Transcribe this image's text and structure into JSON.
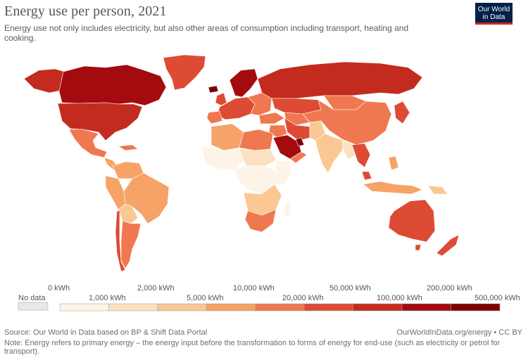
{
  "header": {
    "title": "Energy use per person, 2021",
    "subtitle": "Energy use not only includes electricity, but also other areas of consumption including transport, heating and cooking.",
    "logo_line1": "Our World",
    "logo_line2": "in Data"
  },
  "legend": {
    "no_data_label": "No data",
    "ticks_top": [
      "0 kWh",
      "2,000 kWh",
      "10,000 kWh",
      "50,000 kWh",
      "200,000 kWh"
    ],
    "ticks_bottom": [
      "1,000 kWh",
      "5,000 kWh",
      "20,000 kWh",
      "100,000 kWh",
      "500,000 kWh"
    ],
    "colors": [
      "#fdf3e6",
      "#fde0c2",
      "#fbc792",
      "#f7a266",
      "#ef7851",
      "#de4b35",
      "#c42b1f",
      "#a30b0f",
      "#7e0000"
    ],
    "no_data_color": "#e8e8e8"
  },
  "map_colors": {
    "ocean": "#ffffff",
    "border": "#ffffff"
  },
  "footer": {
    "source": "Source: Our World in Data based on BP & Shift Data Portal",
    "url": "OurWorldInData.org/energy • CC BY",
    "note": "Note: Energy refers to primary energy – the energy input before the transformation to forms of energy for end-use (such as electricity or petrol for transport)."
  }
}
